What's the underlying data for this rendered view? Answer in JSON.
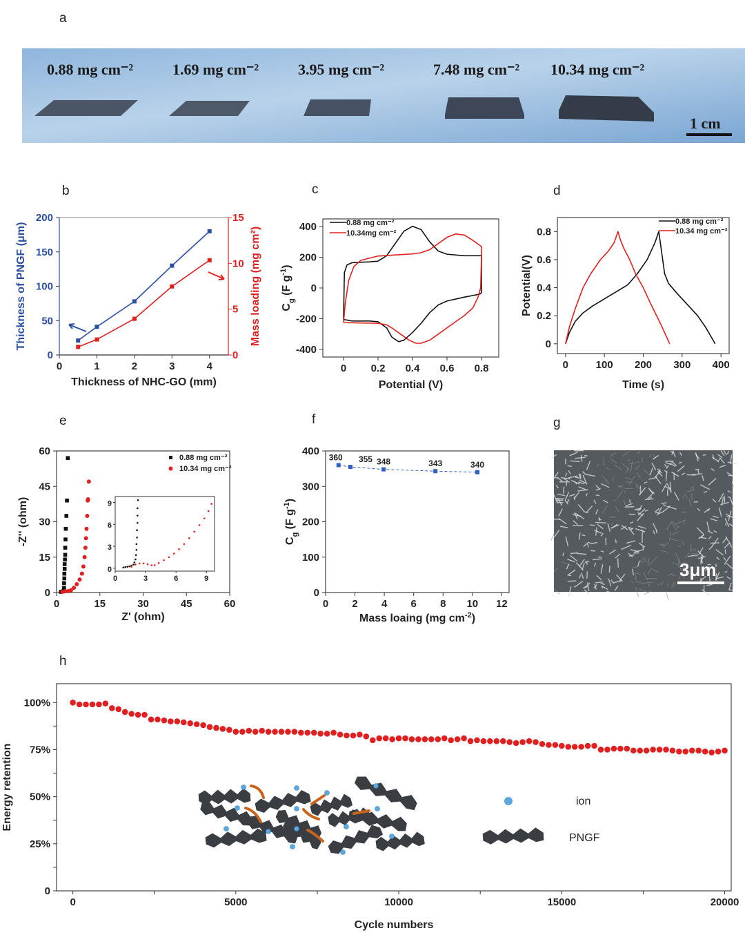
{
  "panel_labels": {
    "a": "a",
    "b": "b",
    "c": "c",
    "d": "d",
    "e": "e",
    "f": "f",
    "g": "g",
    "h": "h"
  },
  "photo": {
    "labels": [
      "0.88 mg cm⁻²",
      "1.69 mg cm⁻²",
      "3.95 mg cm⁻²",
      "7.48 mg cm⁻²",
      "10.34 mg cm⁻²"
    ],
    "scale_bar": "1 cm"
  },
  "sem": {
    "scale_bar": "3μm"
  },
  "illustration": {
    "ion_label": "ion",
    "pngf_label": "PNGF"
  },
  "colors": {
    "blue": "#2b4fa0",
    "red": "#e02020",
    "black": "#111111",
    "marker_blue": "#3060c0",
    "ion": "#5aa8e0",
    "arrow": "#c8641e",
    "flake": "#3a3d42"
  },
  "chart_data": [
    {
      "id": "b",
      "type": "line",
      "xlabel": "Thickness of NHC-GO (mm)",
      "ylabel": "Thickness of PNGF  (μm)",
      "y2label": "Mass loading  (mg cm²)",
      "xlim": [
        0,
        4.5
      ],
      "ylim": [
        0,
        200
      ],
      "y2lim": [
        0,
        15
      ],
      "xticks": [
        0,
        1,
        2,
        3,
        4
      ],
      "yticks": [
        0,
        50,
        100,
        150,
        200
      ],
      "y2ticks": [
        0,
        5,
        10,
        15
      ],
      "series": [
        {
          "name": "Thickness of PNGF",
          "axis": "left",
          "color": "#2b4fa0",
          "marker": "square",
          "x": [
            0.5,
            1,
            2,
            3,
            4
          ],
          "y": [
            21,
            41,
            78,
            130,
            180
          ]
        },
        {
          "name": "Mass loading",
          "axis": "right",
          "color": "#e02020",
          "marker": "square",
          "x": [
            0.5,
            1,
            2,
            3,
            4
          ],
          "y": [
            0.88,
            1.69,
            3.95,
            7.48,
            10.34
          ]
        }
      ]
    },
    {
      "id": "c",
      "type": "line",
      "xlabel": "Potential (V)",
      "ylabel_parts": {
        "main": "C",
        "sub": "g",
        "mid": "(F g",
        "sup": "-1",
        "end": ")"
      },
      "xlim": [
        -0.12,
        0.9
      ],
      "ylim": [
        -450,
        450
      ],
      "xticks": [
        0,
        0.2,
        0.4,
        0.6,
        0.8
      ],
      "yticks": [
        -400,
        -200,
        0,
        200,
        400
      ],
      "legend": [
        "0.88 mg cm⁻²",
        "10.34mg cm⁻²"
      ],
      "legend_position": "top-left",
      "series": [
        {
          "name": "0.88 mg cm-2",
          "color": "#111111",
          "x": [
            0,
            0.005,
            0.02,
            0.05,
            0.15,
            0.2,
            0.25,
            0.3,
            0.35,
            0.4,
            0.45,
            0.5,
            0.55,
            0.6,
            0.7,
            0.8,
            0.8,
            0.79,
            0.7,
            0.6,
            0.55,
            0.5,
            0.45,
            0.4,
            0.35,
            0.32,
            0.28,
            0.25,
            0.2,
            0.15,
            0.05,
            0
          ],
          "y": [
            -205,
            100,
            150,
            165,
            170,
            175,
            210,
            290,
            370,
            402,
            380,
            300,
            240,
            220,
            210,
            210,
            -30,
            -40,
            -60,
            -85,
            -110,
            -160,
            -230,
            -290,
            -340,
            -350,
            -320,
            -260,
            -220,
            -215,
            -215,
            -205
          ]
        },
        {
          "name": "10.34mg cm-2",
          "color": "#e02020",
          "x": [
            0,
            0.01,
            0.03,
            0.06,
            0.1,
            0.2,
            0.3,
            0.4,
            0.45,
            0.5,
            0.55,
            0.6,
            0.65,
            0.7,
            0.75,
            0.8,
            0.8,
            0.795,
            0.78,
            0.75,
            0.7,
            0.65,
            0.6,
            0.55,
            0.5,
            0.45,
            0.42,
            0.38,
            0.33,
            0.28,
            0.25,
            0.2,
            0.1,
            0
          ],
          "y": [
            -225,
            -100,
            50,
            140,
            180,
            208,
            215,
            222,
            230,
            250,
            290,
            330,
            352,
            345,
            310,
            270,
            200,
            0,
            -60,
            -130,
            -180,
            -220,
            -260,
            -300,
            -340,
            -360,
            -360,
            -340,
            -300,
            -260,
            -240,
            -230,
            -228,
            -225
          ]
        }
      ]
    },
    {
      "id": "d",
      "type": "line",
      "xlabel": "Time (s)",
      "ylabel": "Potential(V)",
      "xlim": [
        -21,
        421
      ],
      "ylim": [
        -0.07,
        0.9
      ],
      "xticks": [
        0,
        100,
        200,
        300,
        400
      ],
      "yticks": [
        0,
        0.2,
        0.4,
        0.6,
        0.8
      ],
      "legend": [
        "0.88 mg cm⁻²",
        "10.34 mg cm⁻²"
      ],
      "legend_position": "top-right",
      "series": [
        {
          "name": "0.88 mg cm-2",
          "color": "#111111",
          "x": [
            0,
            10,
            25,
            45,
            70,
            100,
            130,
            160,
            185,
            210,
            230,
            240,
            250,
            255,
            265,
            290,
            320,
            340,
            360,
            385
          ],
          "y": [
            0,
            0.08,
            0.16,
            0.22,
            0.27,
            0.32,
            0.37,
            0.42,
            0.5,
            0.6,
            0.72,
            0.8,
            0.6,
            0.5,
            0.43,
            0.35,
            0.26,
            0.2,
            0.12,
            0
          ]
        },
        {
          "name": "10.34 mg cm-2",
          "color": "#e02020",
          "x": [
            0,
            10,
            25,
            45,
            65,
            90,
            110,
            125,
            135,
            140,
            150,
            165,
            180,
            200,
            220,
            245,
            268
          ],
          "y": [
            0,
            0.12,
            0.25,
            0.4,
            0.5,
            0.6,
            0.66,
            0.72,
            0.8,
            0.75,
            0.68,
            0.6,
            0.5,
            0.4,
            0.28,
            0.14,
            0
          ]
        }
      ]
    },
    {
      "id": "e",
      "type": "scatter",
      "xlabel": "Z' (ohm)",
      "ylabel": "-Z'' (ohm)",
      "xlim": [
        0,
        60
      ],
      "ylim": [
        0,
        60
      ],
      "xticks": [
        0,
        15,
        30,
        45,
        60
      ],
      "yticks": [
        0,
        15,
        30,
        45,
        60
      ],
      "legend": [
        "0.88 mg cm⁻²",
        "10.34 mg cm⁻²"
      ],
      "legend_position": "top-right",
      "series": [
        {
          "name": "0.88 mg cm-2",
          "color": "#111111",
          "marker": "square",
          "x": [
            1.5,
            2.2,
            2.5,
            2.6,
            2.6,
            2.7,
            2.7,
            2.8,
            2.8,
            2.9,
            3.0,
            3.0,
            3.1,
            3.2,
            3.4,
            3.6,
            3.9
          ],
          "y": [
            0.3,
            0.5,
            1,
            2,
            4,
            6,
            8,
            10,
            12,
            14,
            16,
            19,
            22.5,
            27,
            32.5,
            39,
            57
          ]
        },
        {
          "name": "10.34 mg cm-2",
          "color": "#e02020",
          "marker": "circle",
          "x": [
            2,
            3,
            4,
            5,
            6,
            7,
            8,
            8.8,
            9.3,
            9.7,
            10,
            10.2,
            10.4,
            10.6,
            10.8,
            10.9,
            11.2
          ],
          "y": [
            0.3,
            0.5,
            0.6,
            1,
            2,
            3.5,
            5.5,
            8,
            11,
            15,
            19,
            23,
            27,
            32.5,
            39,
            39.5,
            47
          ]
        }
      ]
    },
    {
      "id": "e-inset",
      "type": "scatter",
      "xlim": [
        0,
        9.8
      ],
      "ylim": [
        -0.4,
        9.8
      ],
      "xticks": [
        0,
        3,
        6,
        9
      ],
      "yticks": [
        0,
        3,
        6,
        9
      ],
      "series": [
        {
          "name": "0.88 mg cm-2",
          "color": "#111111",
          "x": [
            0.8,
            1.0,
            1.2,
            1.4,
            1.6,
            1.8,
            1.9,
            2.0,
            2.05,
            2.1,
            2.1,
            2.15,
            2.15,
            2.2,
            2.2,
            2.2,
            2.25
          ],
          "y": [
            0.1,
            0.15,
            0.2,
            0.25,
            0.35,
            0.5,
            0.8,
            1.2,
            1.8,
            2.5,
            3.3,
            4.2,
            5.2,
            6.2,
            7.2,
            8.2,
            9.3
          ]
        },
        {
          "name": "10.34 mg cm-2",
          "color": "#e02020",
          "x": [
            1.6,
            2.0,
            2.4,
            2.8,
            3.2,
            3.6,
            3.9,
            4.3,
            4.8,
            5.3,
            5.8,
            6.3,
            6.8,
            7.3,
            7.8,
            8.3,
            8.8,
            9.2,
            9.5
          ],
          "y": [
            0.2,
            0.5,
            0.65,
            0.65,
            0.55,
            0.4,
            0.4,
            0.7,
            1.1,
            1.5,
            2.0,
            2.6,
            3.3,
            4.1,
            5.0,
            5.9,
            6.8,
            7.8,
            8.8
          ]
        }
      ]
    },
    {
      "id": "f",
      "type": "line",
      "xlabel_parts": {
        "main": "Mass loaing (mg cm",
        "sup": "-2",
        "end": ")"
      },
      "ylabel_parts": {
        "main": "C",
        "sub": "g",
        "mid": "(F g",
        "sup": "-1",
        "end": ")"
      },
      "xlim": [
        0,
        12.5
      ],
      "ylim": [
        0,
        400
      ],
      "xticks": [
        0,
        2,
        4,
        6,
        8,
        10,
        12
      ],
      "yticks": [
        0,
        100,
        200,
        300,
        400
      ],
      "series": [
        {
          "name": "Cg",
          "color": "#3060c0",
          "marker": "square",
          "dashed": true,
          "x": [
            0.88,
            1.69,
            3.95,
            7.48,
            10.34
          ],
          "y": [
            360,
            355,
            348,
            343,
            340
          ],
          "labels": [
            "360",
            "355",
            "348",
            "343",
            "340"
          ]
        }
      ]
    },
    {
      "id": "h",
      "type": "scatter",
      "xlabel": "Cycle numbers",
      "ylabel": "Energy retention",
      "xlim": [
        -500,
        20200
      ],
      "ylim": [
        0,
        110
      ],
      "xticks": [
        0,
        5000,
        10000,
        15000,
        20000
      ],
      "xtick_labels": [
        "0",
        "5000",
        "10000",
        "15000",
        "20000"
      ],
      "yticks": [
        0,
        25,
        50,
        75,
        100
      ],
      "ytick_labels": [
        "0",
        "25%",
        "50%",
        "75%",
        "100%"
      ],
      "series": [
        {
          "name": "Energy retention",
          "color": "#e02020",
          "marker": "circle",
          "x_start": 0,
          "x_step": 200,
          "y": [
            100,
            99,
            99,
            99,
            99,
            99.5,
            97,
            96.5,
            95,
            94,
            93.5,
            93.5,
            91,
            91,
            90.5,
            90,
            90,
            89.5,
            89,
            88.5,
            88,
            87,
            86.5,
            86,
            85.5,
            84.5,
            84.5,
            85,
            84.5,
            85,
            84.5,
            84.5,
            84.5,
            84.5,
            84.5,
            84,
            84,
            84,
            83.5,
            83.5,
            84,
            83,
            82.5,
            82.5,
            83,
            82,
            80,
            81,
            81,
            80.5,
            81,
            81,
            80.5,
            80.5,
            80.5,
            80.5,
            80.5,
            81,
            80,
            80.5,
            81,
            79.5,
            80,
            79.5,
            79.5,
            79.5,
            79.5,
            79,
            78.5,
            79,
            79.5,
            79,
            78,
            77.5,
            77.5,
            77,
            76.5,
            76.5,
            76.5,
            77,
            77,
            75,
            75,
            75.5,
            75.5,
            75.5,
            74.5,
            74.5,
            74.5,
            75,
            75,
            75,
            74.5,
            74,
            74,
            74.5,
            74.5,
            74,
            73.5,
            74,
            74.5
          ]
        }
      ]
    }
  ]
}
